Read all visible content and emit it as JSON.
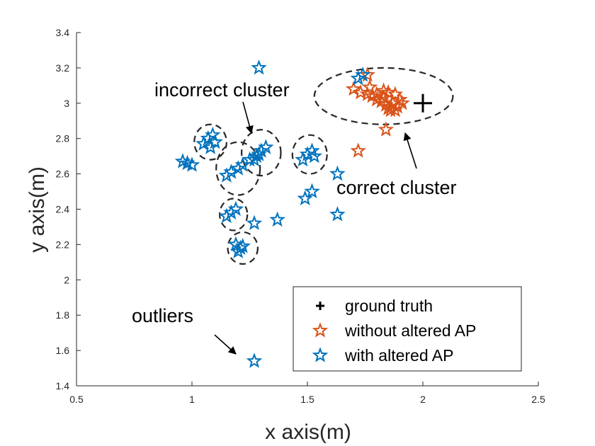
{
  "chart_data": {
    "type": "scatter",
    "title": "",
    "xlabel": "x axis(m)",
    "ylabel": "y axis(m)",
    "xlim": [
      0.5,
      2.5
    ],
    "ylim": [
      1.4,
      3.4
    ],
    "xticks": [
      "0.5",
      "1",
      "1.5",
      "2",
      "2.5"
    ],
    "yticks": [
      "1.4",
      "1.6",
      "1.8",
      "2",
      "2.2",
      "2.4",
      "2.6",
      "2.8",
      "3",
      "3.2",
      "3.4"
    ],
    "grid": false,
    "legend_position": "bottom-right",
    "colors": {
      "without": "#D95319",
      "with": "#0072BD",
      "truth": "#000000"
    },
    "series": [
      {
        "name": "ground truth",
        "marker": "plus",
        "x": [
          2.0
        ],
        "y": [
          3.0
        ]
      },
      {
        "name": "without altered AP",
        "marker": "star",
        "x": [
          1.7,
          1.73,
          1.76,
          1.78,
          1.8,
          1.83,
          1.85,
          1.88,
          1.9,
          1.87,
          1.84,
          1.82,
          1.86,
          1.89,
          1.91,
          1.88,
          1.85,
          1.83,
          1.8,
          1.77,
          1.84,
          1.86,
          1.72,
          1.76
        ],
        "y": [
          3.08,
          3.06,
          3.05,
          3.04,
          3.02,
          3.03,
          3.06,
          3.05,
          3.02,
          3.0,
          2.99,
          3.01,
          2.98,
          2.98,
          3.0,
          2.96,
          2.97,
          3.07,
          3.05,
          3.09,
          2.85,
          2.96,
          2.73,
          3.16
        ]
      },
      {
        "name": "with altered AP",
        "marker": "star",
        "x": [
          1.29,
          1.72,
          1.74,
          1.05,
          1.07,
          1.09,
          1.1,
          1.08,
          0.96,
          0.98,
          1.0,
          1.28,
          1.3,
          1.32,
          1.27,
          1.29,
          1.15,
          1.17,
          1.2,
          1.22,
          1.25,
          1.48,
          1.5,
          1.52,
          1.53,
          1.63,
          1.52,
          1.49,
          1.63,
          1.37,
          1.15,
          1.17,
          1.19,
          1.27,
          1.2,
          1.21,
          1.19,
          1.22,
          1.27
        ],
        "y": [
          3.2,
          3.14,
          3.16,
          2.77,
          2.8,
          2.82,
          2.78,
          2.75,
          2.67,
          2.66,
          2.65,
          2.7,
          2.73,
          2.75,
          2.68,
          2.71,
          2.59,
          2.61,
          2.63,
          2.65,
          2.68,
          2.68,
          2.71,
          2.73,
          2.7,
          2.6,
          2.5,
          2.46,
          2.37,
          2.34,
          2.36,
          2.38,
          2.4,
          2.32,
          2.16,
          2.18,
          2.2,
          2.19,
          1.54
        ]
      }
    ],
    "clusters": [
      {
        "cx": 1.83,
        "cy": 3.04,
        "rx": 0.3,
        "ry": 0.16
      },
      {
        "cx": 1.08,
        "cy": 2.78,
        "rx": 0.07,
        "ry": 0.1
      },
      {
        "cx": 1.2,
        "cy": 2.63,
        "rx": 0.095,
        "ry": 0.15
      },
      {
        "cx": 1.3,
        "cy": 2.72,
        "rx": 0.085,
        "ry": 0.13
      },
      {
        "cx": 1.51,
        "cy": 2.71,
        "rx": 0.075,
        "ry": 0.11
      },
      {
        "cx": 1.18,
        "cy": 2.37,
        "rx": 0.06,
        "ry": 0.09
      },
      {
        "cx": 1.22,
        "cy": 2.18,
        "rx": 0.065,
        "ry": 0.09
      }
    ],
    "annotations": [
      {
        "text": "incorrect cluster",
        "x": 0.95,
        "y": 3.07,
        "ax_from": [
          1.72,
          3.3
        ],
        "ax_to": [
          1.72,
          3.6
        ]
      },
      {
        "text": "correct cluster",
        "x": 1.63,
        "y": 2.5
      },
      {
        "text": "outliers",
        "x": 0.75,
        "y": 1.75
      }
    ]
  }
}
